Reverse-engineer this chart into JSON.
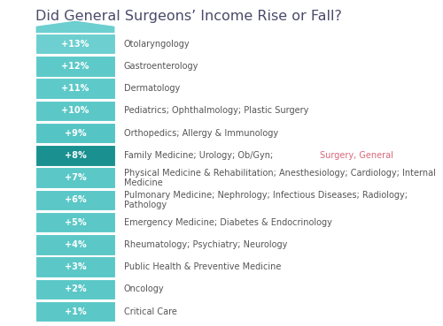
{
  "title": "Did General Surgeons’ Income Rise or Fall?",
  "title_color": "#4a4a6a",
  "background_color": "#ffffff",
  "rows": [
    {
      "label": "+13%",
      "text_normal": "Otolaryngology",
      "text_highlight": "",
      "color": "#6dcfcf"
    },
    {
      "label": "+12%",
      "text_normal": "Gastroenterology",
      "text_highlight": "",
      "color": "#5ec9c9"
    },
    {
      "label": "+11%",
      "text_normal": "Dermatology",
      "text_highlight": "",
      "color": "#5ec9c9"
    },
    {
      "label": "+10%",
      "text_normal": "Pediatrics; Ophthalmology; Plastic Surgery",
      "text_highlight": "",
      "color": "#5bc7c7"
    },
    {
      "label": "+9%",
      "text_normal": "Orthopedics; Allergy & Immunology",
      "text_highlight": "",
      "color": "#55c4c4"
    },
    {
      "label": "+8%",
      "text_normal": "Family Medicine; Urology; Ob/Gyn; ",
      "text_highlight": "Surgery, General",
      "color": "#1a9090"
    },
    {
      "label": "+7%",
      "text_normal": "Physical Medicine & Rehabilitation; Anesthesiology; Cardiology; Internal\nMedicine",
      "text_highlight": "",
      "color": "#5bc7c7"
    },
    {
      "label": "+6%",
      "text_normal": "Pulmonary Medicine; Nephrology; Infectious Diseases; Radiology;\nPathology",
      "text_highlight": "",
      "color": "#5bc7c7"
    },
    {
      "label": "+5%",
      "text_normal": "Emergency Medicine; Diabetes & Endocrinology",
      "text_highlight": "",
      "color": "#5bc7c7"
    },
    {
      "label": "+4%",
      "text_normal": "Rheumatology; Psychiatry; Neurology",
      "text_highlight": "",
      "color": "#5bc7c7"
    },
    {
      "label": "+3%",
      "text_normal": "Public Health & Preventive Medicine",
      "text_highlight": "",
      "color": "#5bc7c7"
    },
    {
      "label": "+2%",
      "text_normal": "Oncology",
      "text_highlight": "",
      "color": "#5bc7c7"
    },
    {
      "label": "+1%",
      "text_normal": "Critical Care",
      "text_highlight": "",
      "color": "#5bc7c7"
    }
  ],
  "bar_color_top_arrow": "#6dcfcf",
  "text_color": "#555555",
  "highlight_text_color": "#d9687a",
  "label_text_color": "#ffffff",
  "font_size_title": 11.5,
  "font_size_label": 7,
  "font_size_text": 7
}
